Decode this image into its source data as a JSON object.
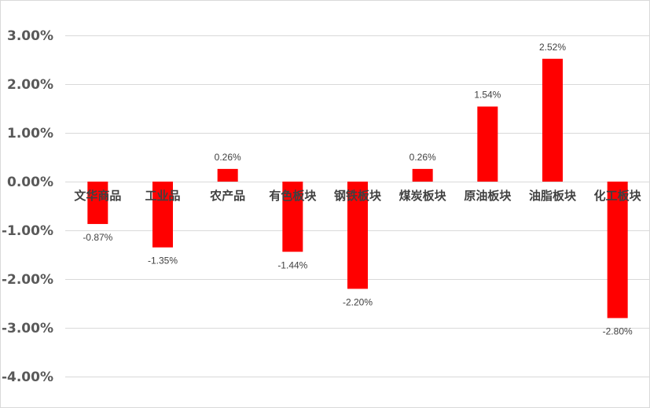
{
  "chart_data": {
    "type": "bar",
    "categories": [
      "文华商品",
      "工业品",
      "农产品",
      "有色板块",
      "钢铁板块",
      "煤炭板块",
      "原油板块",
      "油脂板块",
      "化工板块"
    ],
    "values": [
      -0.87,
      -1.35,
      0.26,
      -1.44,
      -2.2,
      0.26,
      1.54,
      2.52,
      -2.8
    ],
    "data_labels": [
      "-0.87%",
      "-1.35%",
      "0.26%",
      "-1.44%",
      "-2.20%",
      "0.26%",
      "1.54%",
      "2.52%",
      "-2.80%"
    ],
    "y_ticks": [
      3,
      2,
      1,
      0,
      -1,
      -2,
      -3,
      -4
    ],
    "y_tick_labels": [
      "3.00%",
      "2.00%",
      "1.00%",
      "0.00%",
      "-1.00%",
      "-2.00%",
      "-3.00%",
      "-4.00%"
    ],
    "ylim": [
      -4,
      3
    ],
    "title": "",
    "xlabel": "",
    "ylabel": "",
    "grid": true,
    "legend": "none",
    "bar_color": "#ff0000"
  }
}
